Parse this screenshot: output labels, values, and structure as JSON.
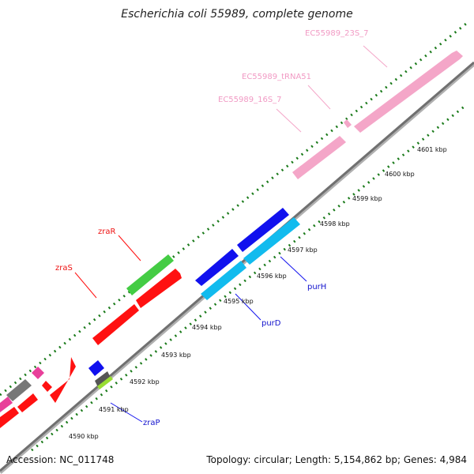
{
  "header": {
    "title": "Escherichia coli 55989, complete genome"
  },
  "footer": {
    "accession": "Accession: NC_011748",
    "summary": "Topology: circular; Length: 5,154,862 bp; Genes: 4,984"
  },
  "colors": {
    "rrna": "#f4a6c8",
    "forward_red": "#ff1111",
    "green": "#44cc44",
    "blue": "#1111ee",
    "cyan": "#11bbee",
    "gray": "#777777",
    "magenta": "#e8409a",
    "backbone": "#808080",
    "tick": "#1a7a1a"
  },
  "ruler": {
    "unit": "kbp",
    "ticks": [
      "4590 kbp",
      "4591 kbp",
      "4592 kbp",
      "4593 kbp",
      "4594 kbp",
      "4595 kbp",
      "4596 kbp",
      "4597 kbp",
      "4598 kbp",
      "4599 kbp",
      "4600 kbp",
      "4601 kbp"
    ]
  },
  "gene_labels": {
    "rrna_23s": "EC55989_23S_7",
    "trna": "EC55989_tRNA51",
    "rrna_16s": "EC55989_16S_7",
    "zraR": "zraR",
    "zraS": "zraS",
    "purH": "purH",
    "purD": "purD",
    "zraP": "zraP"
  }
}
